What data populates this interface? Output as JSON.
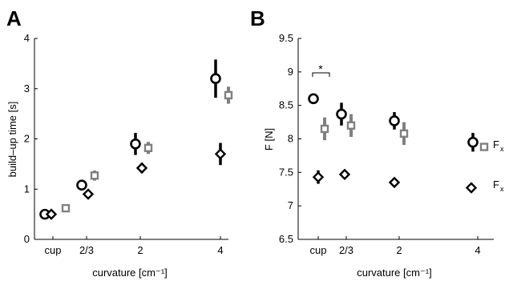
{
  "chart_data": [
    {
      "type": "scatter",
      "panel_label": "A",
      "xlabel": "curvature [cm⁻¹]",
      "ylabel": "build–up time [s]",
      "ylim": [
        0,
        4
      ],
      "yticks": [
        0,
        1,
        2,
        3,
        4
      ],
      "xticks": [
        "cup",
        "2/3",
        "2",
        "4"
      ],
      "grid": false,
      "series": [
        {
          "marker": "circle",
          "color": "#000000",
          "points": [
            {
              "x": "cup",
              "y": 0.5,
              "err": 0.05
            },
            {
              "x": "2/3",
              "y": 1.08,
              "err": 0.08
            },
            {
              "x": "2",
              "y": 1.9,
              "err": 0.22
            },
            {
              "x": "4",
              "y": 3.2,
              "err": 0.38
            }
          ]
        },
        {
          "marker": "diamond",
          "color": "#000000",
          "points": [
            {
              "x": "cup",
              "y": 0.5,
              "err": 0.05
            },
            {
              "x": "2/3",
              "y": 0.9,
              "err": 0.06
            },
            {
              "x": "2",
              "y": 1.42,
              "err": 0.1
            },
            {
              "x": "4",
              "y": 1.7,
              "err": 0.22
            }
          ]
        },
        {
          "marker": "square",
          "color": "#808080",
          "points": [
            {
              "x": "cup",
              "y": 0.62,
              "err": 0.07
            },
            {
              "x": "2/3",
              "y": 1.27,
              "err": 0.1
            },
            {
              "x": "2",
              "y": 1.82,
              "err": 0.12
            },
            {
              "x": "4",
              "y": 2.87,
              "err": 0.17
            }
          ]
        }
      ]
    },
    {
      "type": "scatter",
      "panel_label": "B",
      "xlabel": "curvature [cm⁻¹]",
      "ylabel": "F [N]",
      "ylim": [
        6.5,
        9.5
      ],
      "yticks": [
        6.5,
        7,
        7.5,
        8,
        8.5,
        9,
        9.5
      ],
      "xticks": [
        "cup",
        "2/3",
        "2",
        "4"
      ],
      "grid": false,
      "annotations": [
        "*"
      ],
      "series": [
        {
          "marker": "circle",
          "color": "#000000",
          "points": [
            {
              "x": "cup",
              "y": 8.6,
              "err": 0.0
            },
            {
              "x": "2/3",
              "y": 8.37,
              "err": 0.17
            },
            {
              "x": "2",
              "y": 8.27,
              "err": 0.13
            },
            {
              "x": "4",
              "y": 7.95,
              "err": 0.14
            }
          ]
        },
        {
          "marker": "square",
          "color": "#808080",
          "points": [
            {
              "x": "cup",
              "y": 8.15,
              "err": 0.17
            },
            {
              "x": "2/3",
              "y": 8.2,
              "err": 0.17
            },
            {
              "x": "2",
              "y": 8.08,
              "err": 0.17
            },
            {
              "x": "4",
              "y": 7.88,
              "err": 0.0
            }
          ]
        },
        {
          "marker": "diamond",
          "color": "#000000",
          "points": [
            {
              "x": "cup",
              "y": 7.43,
              "err": 0.1
            },
            {
              "x": "2/3",
              "y": 7.47,
              "err": 0.06
            },
            {
              "x": "2",
              "y": 7.35,
              "err": 0.0
            },
            {
              "x": "4",
              "y": 7.27,
              "err": 0.07
            }
          ]
        }
      ],
      "legend": [
        {
          "marker": "square",
          "label": "F",
          "subscript": "x"
        },
        {
          "marker": "diamond",
          "label": "F",
          "subscript": "x"
        }
      ]
    }
  ]
}
